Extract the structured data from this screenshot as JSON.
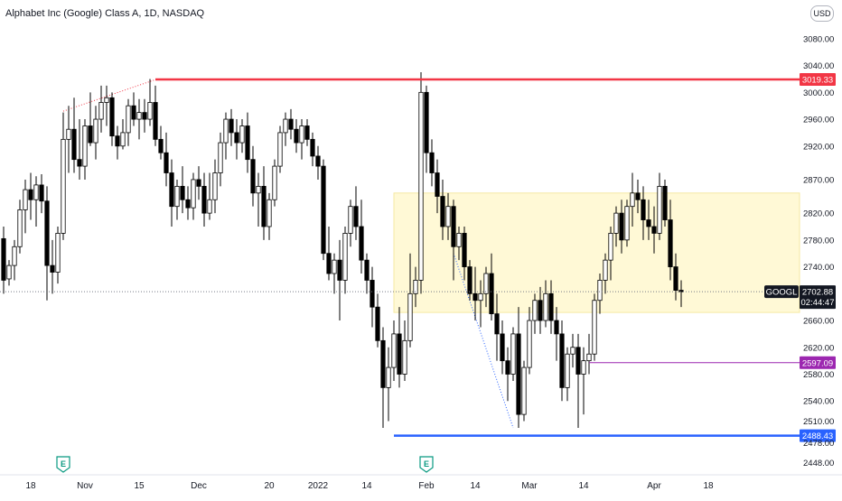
{
  "header": {
    "title": "Alphabet Inc (Google) Class A, 1D, NASDAQ",
    "currency_button": "USD"
  },
  "colors": {
    "resistance": "#f23645",
    "support": "#2962ff",
    "level_purple": "#9c27b0",
    "zone_fill": "#fff9d6",
    "up_candle": "#ffffff",
    "down_candle": "#000000",
    "earnings_badge": "#089981"
  },
  "chart_data": {
    "type": "candlestick",
    "symbol": "GOOGL",
    "last_price": "2702.88",
    "countdown": "02:44:47",
    "ylim": [
      2430,
      3100
    ],
    "y_ticks": [
      2448,
      2478,
      2510,
      2540,
      2580,
      2620,
      2660,
      2700,
      2740,
      2780,
      2820,
      2870,
      2920,
      2960,
      3000,
      3040,
      3080
    ],
    "y_tick_labels": [
      "2448.00",
      "2478.00",
      "2510.00",
      "2540.00",
      "2580.00",
      "2620.00",
      "2660.00",
      "2700.00",
      "2740.00",
      "2780.00",
      "2820.00",
      "2870.00",
      "2920.00",
      "2960.00",
      "3000.00",
      "3040.00",
      "3080.00"
    ],
    "x_ticks": [
      {
        "label": "18",
        "bar": 5
      },
      {
        "label": "Nov",
        "bar": 15
      },
      {
        "label": "15",
        "bar": 25
      },
      {
        "label": "Dec",
        "bar": 36
      },
      {
        "label": "20",
        "bar": 49
      },
      {
        "label": "2022",
        "bar": 58
      },
      {
        "label": "14",
        "bar": 67
      },
      {
        "label": "Feb",
        "bar": 78
      },
      {
        "label": "14",
        "bar": 87
      },
      {
        "label": "Mar",
        "bar": 97
      },
      {
        "label": "14",
        "bar": 107
      },
      {
        "label": "Apr",
        "bar": 120
      },
      {
        "label": "18",
        "bar": 130
      }
    ],
    "levels": [
      {
        "name": "resistance",
        "price": 3019.33,
        "label": "3019.33",
        "from_bar": 28,
        "color": "#f23645"
      },
      {
        "name": "purple-level",
        "price": 2597.09,
        "label": "2597.09",
        "from_bar": 108,
        "color": "#9c27b0"
      },
      {
        "name": "support",
        "price": 2488.43,
        "label": "2488.43",
        "from_bar": 72,
        "color": "#2962ff"
      }
    ],
    "zone": {
      "from_bar": 72,
      "top": 2850,
      "bottom": 2672
    },
    "earnings_markers": [
      {
        "bar": 11,
        "label": "E"
      },
      {
        "bar": 78,
        "label": "E"
      }
    ],
    "trend_lines": [
      {
        "from": [
          11,
          2972
        ],
        "to": [
          28,
          3019
        ],
        "color": "#f23645"
      },
      {
        "from": [
          83,
          2760
        ],
        "to": [
          94,
          2500
        ],
        "color": "#2962ff"
      }
    ],
    "ohlc": [
      [
        2782,
        2800,
        2700,
        2720
      ],
      [
        2722,
        2750,
        2712,
        2742
      ],
      [
        2742,
        2780,
        2720,
        2770
      ],
      [
        2770,
        2840,
        2760,
        2825
      ],
      [
        2825,
        2870,
        2790,
        2855
      ],
      [
        2855,
        2880,
        2810,
        2840
      ],
      [
        2840,
        2875,
        2800,
        2862
      ],
      [
        2862,
        2878,
        2820,
        2838
      ],
      [
        2838,
        2860,
        2690,
        2742
      ],
      [
        2742,
        2780,
        2700,
        2732
      ],
      [
        2732,
        2800,
        2715,
        2790
      ],
      [
        2790,
        2970,
        2780,
        2930
      ],
      [
        2930,
        2980,
        2880,
        2945
      ],
      [
        2945,
        2992,
        2880,
        2900
      ],
      [
        2900,
        2960,
        2870,
        2890
      ],
      [
        2890,
        2960,
        2870,
        2950
      ],
      [
        2950,
        3000,
        2920,
        2925
      ],
      [
        2925,
        2980,
        2900,
        2960
      ],
      [
        2960,
        3010,
        2940,
        2985
      ],
      [
        2985,
        3010,
        2950,
        2992
      ],
      [
        2992,
        3000,
        2920,
        2935
      ],
      [
        2935,
        2950,
        2900,
        2920
      ],
      [
        2920,
        2960,
        2915,
        2940
      ],
      [
        2940,
        2990,
        2920,
        2980
      ],
      [
        2980,
        3000,
        2950,
        2960
      ],
      [
        2960,
        2990,
        2930,
        2970
      ],
      [
        2970,
        2990,
        2940,
        2960
      ],
      [
        2960,
        3020,
        2950,
        2985
      ],
      [
        2985,
        3010,
        2920,
        2930
      ],
      [
        2930,
        2950,
        2900,
        2910
      ],
      [
        2910,
        2940,
        2860,
        2880
      ],
      [
        2880,
        2900,
        2800,
        2830
      ],
      [
        2830,
        2870,
        2810,
        2860
      ],
      [
        2860,
        2890,
        2820,
        2840
      ],
      [
        2840,
        2860,
        2810,
        2828
      ],
      [
        2828,
        2880,
        2810,
        2870
      ],
      [
        2870,
        2890,
        2840,
        2860
      ],
      [
        2860,
        2880,
        2800,
        2820
      ],
      [
        2820,
        2880,
        2810,
        2840
      ],
      [
        2840,
        2900,
        2820,
        2880
      ],
      [
        2880,
        2940,
        2860,
        2925
      ],
      [
        2925,
        2970,
        2900,
        2960
      ],
      [
        2960,
        2975,
        2920,
        2940
      ],
      [
        2940,
        2960,
        2900,
        2925
      ],
      [
        2925,
        2960,
        2910,
        2950
      ],
      [
        2950,
        2970,
        2880,
        2900
      ],
      [
        2900,
        2920,
        2830,
        2850
      ],
      [
        2850,
        2880,
        2800,
        2860
      ],
      [
        2860,
        2890,
        2780,
        2800
      ],
      [
        2800,
        2850,
        2780,
        2840
      ],
      [
        2840,
        2900,
        2830,
        2890
      ],
      [
        2890,
        2950,
        2880,
        2940
      ],
      [
        2940,
        2970,
        2920,
        2960
      ],
      [
        2960,
        2975,
        2930,
        2945
      ],
      [
        2945,
        2960,
        2910,
        2925
      ],
      [
        2925,
        2960,
        2900,
        2950
      ],
      [
        2950,
        2960,
        2920,
        2930
      ],
      [
        2930,
        2940,
        2890,
        2905
      ],
      [
        2905,
        2920,
        2870,
        2890
      ],
      [
        2890,
        2900,
        2750,
        2760
      ],
      [
        2760,
        2800,
        2720,
        2730
      ],
      [
        2730,
        2760,
        2700,
        2750
      ],
      [
        2750,
        2780,
        2660,
        2720
      ],
      [
        2720,
        2800,
        2700,
        2790
      ],
      [
        2790,
        2840,
        2770,
        2830
      ],
      [
        2830,
        2860,
        2780,
        2800
      ],
      [
        2800,
        2840,
        2730,
        2750
      ],
      [
        2750,
        2760,
        2700,
        2720
      ],
      [
        2720,
        2740,
        2650,
        2680
      ],
      [
        2680,
        2700,
        2620,
        2630
      ],
      [
        2630,
        2650,
        2500,
        2560
      ],
      [
        2560,
        2620,
        2510,
        2590
      ],
      [
        2590,
        2660,
        2570,
        2640
      ],
      [
        2640,
        2680,
        2560,
        2580
      ],
      [
        2580,
        2660,
        2570,
        2630
      ],
      [
        2630,
        2760,
        2620,
        2700
      ],
      [
        2700,
        2740,
        2680,
        2720
      ],
      [
        2720,
        3030,
        2700,
        3000
      ],
      [
        3000,
        3010,
        2880,
        2910
      ],
      [
        2910,
        2930,
        2860,
        2880
      ],
      [
        2880,
        2900,
        2820,
        2845
      ],
      [
        2845,
        2870,
        2780,
        2800
      ],
      [
        2800,
        2850,
        2780,
        2830
      ],
      [
        2830,
        2840,
        2720,
        2770
      ],
      [
        2770,
        2800,
        2750,
        2790
      ],
      [
        2790,
        2800,
        2720,
        2740
      ],
      [
        2740,
        2750,
        2690,
        2700
      ],
      [
        2700,
        2740,
        2660,
        2690
      ],
      [
        2690,
        2720,
        2650,
        2700
      ],
      [
        2700,
        2740,
        2680,
        2730
      ],
      [
        2730,
        2760,
        2660,
        2670
      ],
      [
        2670,
        2700,
        2600,
        2640
      ],
      [
        2640,
        2660,
        2580,
        2600
      ],
      [
        2600,
        2620,
        2540,
        2580
      ],
      [
        2580,
        2650,
        2570,
        2640
      ],
      [
        2640,
        2680,
        2500,
        2520
      ],
      [
        2520,
        2600,
        2510,
        2590
      ],
      [
        2590,
        2680,
        2580,
        2660
      ],
      [
        2660,
        2700,
        2640,
        2690
      ],
      [
        2690,
        2710,
        2640,
        2660
      ],
      [
        2660,
        2720,
        2650,
        2700
      ],
      [
        2700,
        2720,
        2640,
        2660
      ],
      [
        2660,
        2680,
        2600,
        2640
      ],
      [
        2640,
        2660,
        2540,
        2560
      ],
      [
        2560,
        2620,
        2540,
        2610
      ],
      [
        2610,
        2640,
        2590,
        2620
      ],
      [
        2620,
        2640,
        2500,
        2580
      ],
      [
        2580,
        2620,
        2520,
        2600
      ],
      [
        2600,
        2640,
        2580,
        2610
      ],
      [
        2610,
        2700,
        2600,
        2690
      ],
      [
        2690,
        2730,
        2670,
        2720
      ],
      [
        2720,
        2760,
        2700,
        2750
      ],
      [
        2750,
        2800,
        2720,
        2790
      ],
      [
        2790,
        2830,
        2770,
        2820
      ],
      [
        2820,
        2840,
        2760,
        2780
      ],
      [
        2780,
        2840,
        2770,
        2830
      ],
      [
        2830,
        2880,
        2800,
        2850
      ],
      [
        2850,
        2870,
        2820,
        2840
      ],
      [
        2840,
        2860,
        2780,
        2810
      ],
      [
        2810,
        2840,
        2780,
        2800
      ],
      [
        2800,
        2830,
        2760,
        2790
      ],
      [
        2790,
        2880,
        2780,
        2860
      ],
      [
        2860,
        2870,
        2800,
        2810
      ],
      [
        2810,
        2840,
        2720,
        2740
      ],
      [
        2740,
        2760,
        2690,
        2705
      ],
      [
        2705,
        2720,
        2680,
        2702.88
      ]
    ]
  }
}
